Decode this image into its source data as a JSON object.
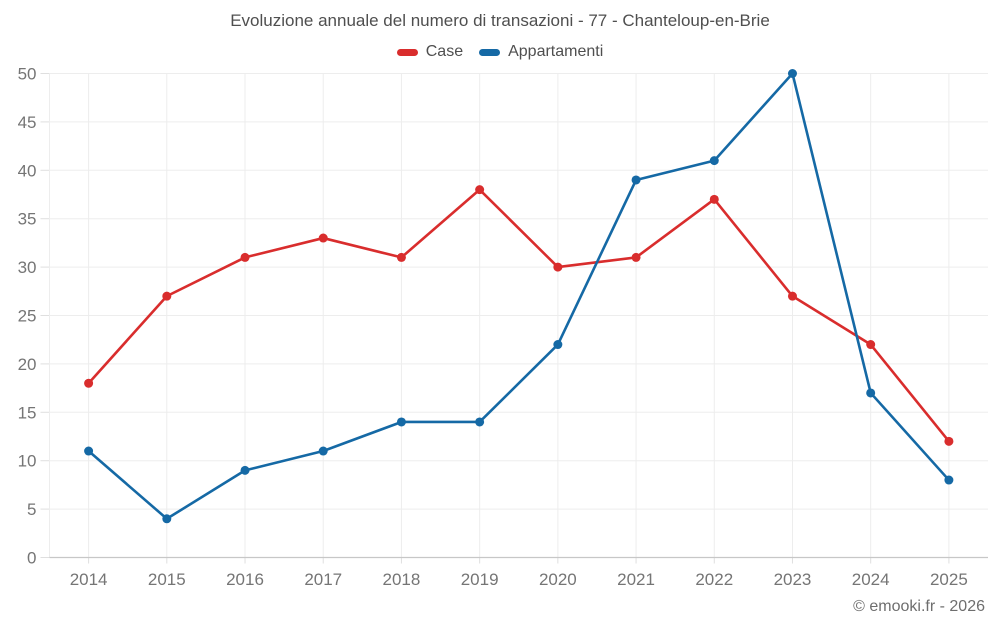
{
  "chart_data": {
    "type": "line",
    "title": "Evoluzione annuale del numero di transazioni - 77 - Chanteloup-en-Brie",
    "categories": [
      "2014",
      "2015",
      "2016",
      "2017",
      "2018",
      "2019",
      "2020",
      "2021",
      "2022",
      "2023",
      "2024",
      "2025"
    ],
    "series": [
      {
        "name": "Case",
        "color": "#d92d2d",
        "values": [
          18,
          27,
          31,
          33,
          31,
          38,
          30,
          31,
          37,
          27,
          22,
          12
        ]
      },
      {
        "name": "Appartamenti",
        "color": "#1569a5",
        "values": [
          11,
          4,
          9,
          11,
          14,
          14,
          22,
          39,
          41,
          50,
          17,
          8
        ]
      }
    ],
    "xlabel": "",
    "ylabel": "",
    "ylim": [
      0,
      50
    ],
    "ytick_step": 5,
    "ytick_labels": [
      "0",
      "5",
      "10",
      "15",
      "20",
      "25",
      "30",
      "35",
      "40",
      "45",
      "50"
    ],
    "grid": true,
    "legend_position": "top",
    "footer": "© emooki.fr - 2026",
    "style": {
      "grid_color": "#ededed",
      "axis_color": "#c7c7c7",
      "tick_color": "#dfdfdf",
      "tick_text_color": "#757575"
    }
  }
}
